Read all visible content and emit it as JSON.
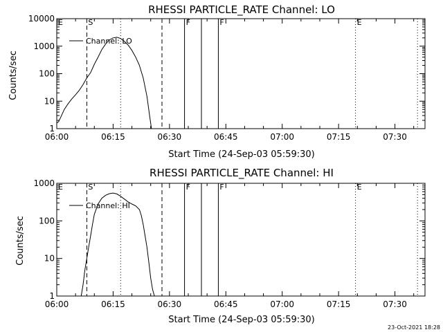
{
  "chart_data": [
    {
      "type": "line",
      "title": "RHESSI PARTICLE_RATE Channel: LO",
      "xlabel": "Start Time (24-Sep-03 05:59:30)",
      "ylabel": "Counts/sec",
      "yscale": "log",
      "xlim": [
        0,
        98
      ],
      "ylim": [
        1,
        10000
      ],
      "x_ticks": [
        0,
        15,
        30,
        45,
        60,
        75,
        90
      ],
      "x_tick_labels": [
        "06:00",
        "06:15",
        "06:30",
        "06:45",
        "07:00",
        "07:15",
        "07:30"
      ],
      "y_ticks": [
        1,
        10,
        100,
        1000,
        10000
      ],
      "y_tick_labels": [
        "1",
        "10",
        "100",
        "1000",
        "10000"
      ],
      "legend": "Channel: LO",
      "series": [
        {
          "name": "Channel: LO",
          "x": [
            0,
            0.5,
            1,
            2,
            3,
            4,
            5,
            6,
            7,
            8,
            9,
            10,
            11,
            12,
            13,
            14,
            15,
            16,
            17,
            18,
            19,
            20,
            21,
            22,
            23,
            24,
            24.7,
            25.2
          ],
          "y": [
            1.6,
            1.8,
            2.5,
            5,
            8,
            12,
            17,
            25,
            40,
            70,
            110,
            220,
            400,
            750,
            1200,
            1700,
            2000,
            2100,
            1900,
            1500,
            1100,
            700,
            400,
            200,
            70,
            15,
            3,
            1
          ]
        }
      ],
      "markers": [
        {
          "x": 0,
          "label": "E",
          "style": "dotted"
        },
        {
          "x": 8,
          "label": "S",
          "style": "dashed"
        },
        {
          "x": 17,
          "label": "",
          "style": "dotted"
        },
        {
          "x": 28,
          "label": "",
          "style": "dashed"
        },
        {
          "x": 34,
          "label": "F",
          "style": "solid"
        },
        {
          "x": 38.5,
          "label": "",
          "style": "solid"
        },
        {
          "x": 43,
          "label": "F",
          "style": "solid"
        },
        {
          "x": 79.5,
          "label": "E",
          "style": "dotted"
        },
        {
          "x": 96,
          "label": "",
          "style": "dotted"
        }
      ]
    },
    {
      "type": "line",
      "title": "RHESSI PARTICLE_RATE Channel: HI",
      "xlabel": "Start Time (24-Sep-03 05:59:30)",
      "ylabel": "Counts/sec",
      "yscale": "log",
      "xlim": [
        0,
        98
      ],
      "ylim": [
        1,
        1000
      ],
      "x_ticks": [
        0,
        15,
        30,
        45,
        60,
        75,
        90
      ],
      "x_tick_labels": [
        "06:00",
        "06:15",
        "06:30",
        "06:45",
        "07:00",
        "07:15",
        "07:30"
      ],
      "y_ticks": [
        1,
        10,
        100,
        1000
      ],
      "y_tick_labels": [
        "1",
        "10",
        "100",
        "1000"
      ],
      "legend": "Channel: HI",
      "series": [
        {
          "name": "Channel: HI",
          "x": [
            6.5,
            7,
            7.5,
            8,
            8.5,
            9,
            9.5,
            10,
            11,
            12,
            13,
            14,
            15,
            16,
            17,
            18,
            19,
            20,
            21,
            22,
            22.5,
            23,
            23.5,
            24,
            24.5,
            25,
            25.5,
            26
          ],
          "y": [
            1,
            2,
            5,
            10,
            20,
            40,
            80,
            150,
            280,
            400,
            480,
            530,
            550,
            520,
            450,
            380,
            320,
            280,
            250,
            200,
            140,
            80,
            40,
            20,
            8,
            3,
            1.5,
            1
          ]
        }
      ],
      "markers": [
        {
          "x": 0,
          "label": "E",
          "style": "dotted"
        },
        {
          "x": 8,
          "label": "S",
          "style": "dashed"
        },
        {
          "x": 17,
          "label": "",
          "style": "dotted"
        },
        {
          "x": 28,
          "label": "",
          "style": "dashed"
        },
        {
          "x": 34,
          "label": "F",
          "style": "solid"
        },
        {
          "x": 38.5,
          "label": "",
          "style": "solid"
        },
        {
          "x": 43,
          "label": "F",
          "style": "solid"
        },
        {
          "x": 79.5,
          "label": "E",
          "style": "dotted"
        },
        {
          "x": 96,
          "label": "",
          "style": "dotted"
        }
      ]
    }
  ],
  "footer": {
    "timestamp": "23-Oct-2021 18:28"
  }
}
